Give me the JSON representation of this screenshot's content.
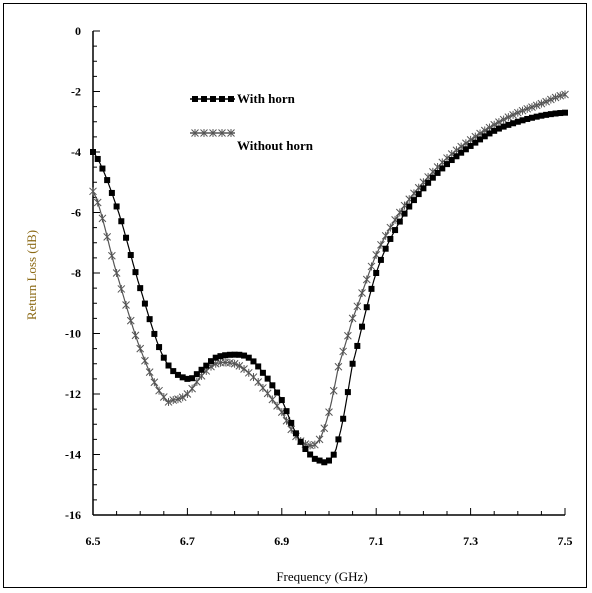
{
  "chart_data": {
    "type": "line",
    "xlabel": "Frequency (GHz)",
    "ylabel": "Return Loss (dB)",
    "xlim": [
      6.5,
      7.5
    ],
    "ylim": [
      -16,
      0
    ],
    "xticks": [
      "6.5",
      "6.7",
      "6.9",
      "7.1",
      "7.3",
      "7.5"
    ],
    "yticks": [
      "0",
      "-2",
      "-4",
      "-6",
      "-8",
      "-10",
      "-12",
      "-14",
      "-16"
    ],
    "grid": false,
    "legend_position": "top-left",
    "series": [
      {
        "name": "With horn",
        "marker": "square",
        "color": "#000000",
        "x": [
          6.5,
          6.55,
          6.6,
          6.65,
          6.7,
          6.73,
          6.76,
          6.8,
          6.83,
          6.86,
          6.9,
          6.93,
          6.96,
          6.98,
          7.0,
          7.02,
          7.05,
          7.1,
          7.15,
          7.2,
          7.25,
          7.3,
          7.35,
          7.4,
          7.45,
          7.5
        ],
        "y": [
          -4.0,
          -5.8,
          -8.5,
          -10.8,
          -11.5,
          -11.2,
          -10.8,
          -10.7,
          -10.8,
          -11.3,
          -12.2,
          -13.3,
          -14.0,
          -14.2,
          -14.2,
          -13.5,
          -11.0,
          -8.0,
          -6.3,
          -5.2,
          -4.4,
          -3.8,
          -3.3,
          -3.0,
          -2.8,
          -2.7
        ]
      },
      {
        "name": "Without horn",
        "marker": "x",
        "color": "#555555",
        "x": [
          6.5,
          6.55,
          6.6,
          6.65,
          6.67,
          6.7,
          6.73,
          6.76,
          6.8,
          6.83,
          6.86,
          6.9,
          6.93,
          6.96,
          6.98,
          7.0,
          7.02,
          7.05,
          7.1,
          7.15,
          7.2,
          7.25,
          7.3,
          7.35,
          7.4,
          7.45,
          7.5
        ],
        "y": [
          -5.3,
          -8.0,
          -10.5,
          -12.1,
          -12.2,
          -12.0,
          -11.4,
          -11.0,
          -11.0,
          -11.3,
          -11.8,
          -12.6,
          -13.4,
          -13.7,
          -13.5,
          -12.6,
          -11.1,
          -9.5,
          -7.4,
          -6.0,
          -5.0,
          -4.2,
          -3.6,
          -3.1,
          -2.7,
          -2.4,
          -2.1
        ]
      }
    ]
  }
}
